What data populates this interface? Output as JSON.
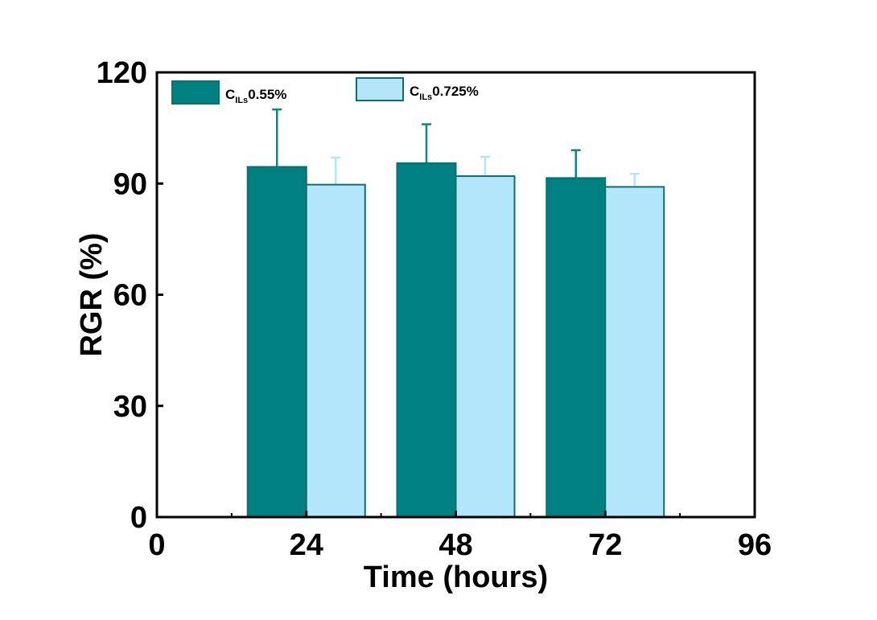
{
  "chart_data": {
    "type": "bar",
    "xlabel": "Time (hours)",
    "ylabel": "RGR (%)",
    "xlim": [
      0,
      96
    ],
    "ylim": [
      0,
      120
    ],
    "xticks": [
      0,
      24,
      48,
      72,
      96
    ],
    "yticks": [
      0,
      30,
      60,
      90,
      120
    ],
    "categories": [
      24,
      48,
      72
    ],
    "series": [
      {
        "name": "C_ILs 0.55%",
        "legend_main": "C",
        "legend_sub": "ILs",
        "legend_suffix": "0.55%",
        "color": "#008080",
        "values": [
          94.5,
          95.5,
          91.5
        ],
        "errors": [
          15.5,
          10.5,
          7.5
        ]
      },
      {
        "name": "C_ILs 0.725%",
        "legend_main": "C",
        "legend_sub": "ILs",
        "legend_suffix": "0.725%",
        "color": "#b3e6fa",
        "values": [
          89.7,
          92.0,
          89.1
        ],
        "errors": [
          7.3,
          5.2,
          3.5
        ]
      }
    ],
    "legend_position": "top-left",
    "grid": false
  }
}
